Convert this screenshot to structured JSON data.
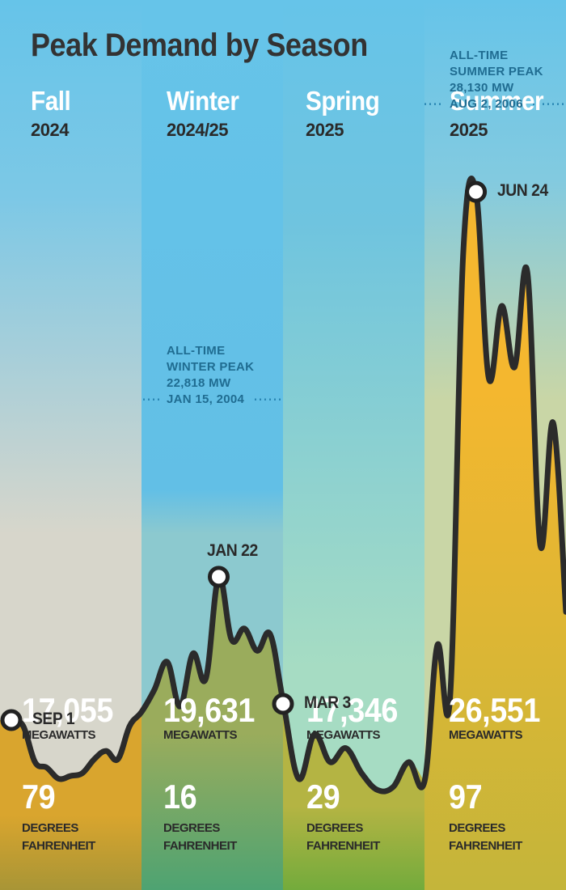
{
  "chart_data": {
    "type": "area",
    "title": "Peak Demand by Season",
    "ylim": [
      14000,
      30000
    ],
    "seasons": [
      {
        "name": "Fall",
        "year": "2024",
        "peak_mw": "17,055",
        "mw_unit": "MEGAWATTS",
        "temp": "79",
        "temp_unit_1": "DEGREES",
        "temp_unit_2": "FAHRENHEIT"
      },
      {
        "name": "Winter",
        "year": "2024/25",
        "peak_mw": "19,631",
        "mw_unit": "MEGAWATTS",
        "temp": "16",
        "temp_unit_1": "DEGREES",
        "temp_unit_2": "FAHRENHEIT"
      },
      {
        "name": "Spring",
        "year": "2025",
        "peak_mw": "17,346",
        "mw_unit": "MEGAWATTS",
        "temp": "29",
        "temp_unit_1": "DEGREES",
        "temp_unit_2": "FAHRENHEIT"
      },
      {
        "name": "Summer",
        "year": "2025",
        "peak_mw": "26,551",
        "mw_unit": "MEGAWATTS",
        "temp": "97",
        "temp_unit_1": "DEGREES",
        "temp_unit_2": "FAHRENHEIT"
      }
    ],
    "series": [
      {
        "season_index": 0,
        "values": [
          17055,
          16950,
          16300,
          16200,
          16000,
          16050,
          16100,
          16350,
          16500,
          16350,
          16950,
          17200
        ]
      },
      {
        "season_index": 1,
        "values": [
          17200,
          17600,
          18100,
          17300,
          18250,
          17800,
          19631,
          18500,
          18700,
          18300,
          18600,
          17400
        ]
      },
      {
        "season_index": 2,
        "values": [
          17346,
          16000,
          16800,
          16300,
          16550,
          16100,
          15800,
          15850,
          16300,
          15950
        ]
      },
      {
        "season_index": 3,
        "values": [
          15950,
          18400,
          17500,
          25400,
          26551,
          23200,
          24500,
          23400,
          25100,
          20200,
          22400,
          19000
        ]
      }
    ],
    "annotations": [
      {
        "label": "SEP 1",
        "season_index": 0,
        "value": 17055
      },
      {
        "label": "JAN 22",
        "season_index": 1,
        "value": 19631
      },
      {
        "label": "MAR 3",
        "season_index": 2,
        "value": 17346
      },
      {
        "label": "JUN 24",
        "season_index": 3,
        "value": 26551
      }
    ],
    "records": [
      {
        "season_index": 1,
        "lines": [
          "ALL-TIME",
          "WINTER PEAK",
          "22,818 MW",
          "JAN 15, 2004"
        ],
        "value": 22818
      },
      {
        "season_index": 3,
        "lines": [
          "ALL-TIME",
          "SUMMER PEAK",
          "28,130 MW",
          "AUG 2, 2006"
        ],
        "value": 28130
      }
    ]
  }
}
